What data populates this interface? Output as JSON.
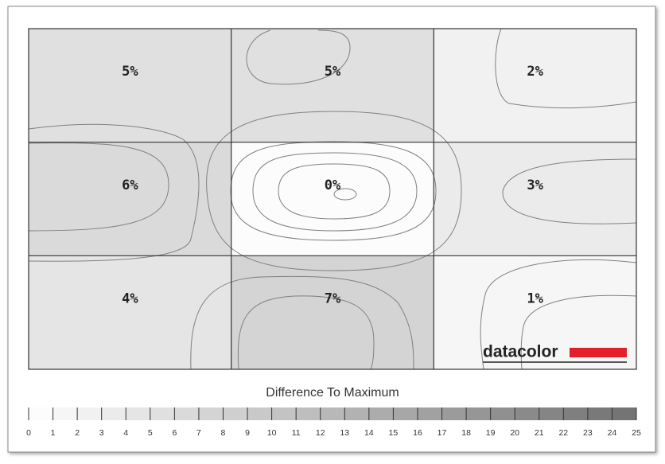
{
  "chart_data": {
    "type": "heatmap",
    "values": [
      [
        5,
        5,
        2
      ],
      [
        6,
        0,
        3
      ],
      [
        4,
        7,
        1
      ]
    ],
    "value_labels": [
      [
        "5%",
        "5%",
        "2%"
      ],
      [
        "6%",
        "0%",
        "3%"
      ],
      [
        "4%",
        "7%",
        "1%"
      ]
    ],
    "colorbar": {
      "label": "Difference To Maximum",
      "lim": [
        0,
        25
      ],
      "ticks": [
        0,
        1,
        2,
        3,
        4,
        5,
        6,
        7,
        8,
        9,
        10,
        11,
        12,
        13,
        14,
        15,
        16,
        17,
        18,
        19,
        20,
        21,
        22,
        23,
        24,
        25
      ],
      "colors": [
        "#fcfcfc",
        "#6e6e6e"
      ]
    },
    "brand": "datacolor",
    "brand_color": "#e2202a"
  }
}
